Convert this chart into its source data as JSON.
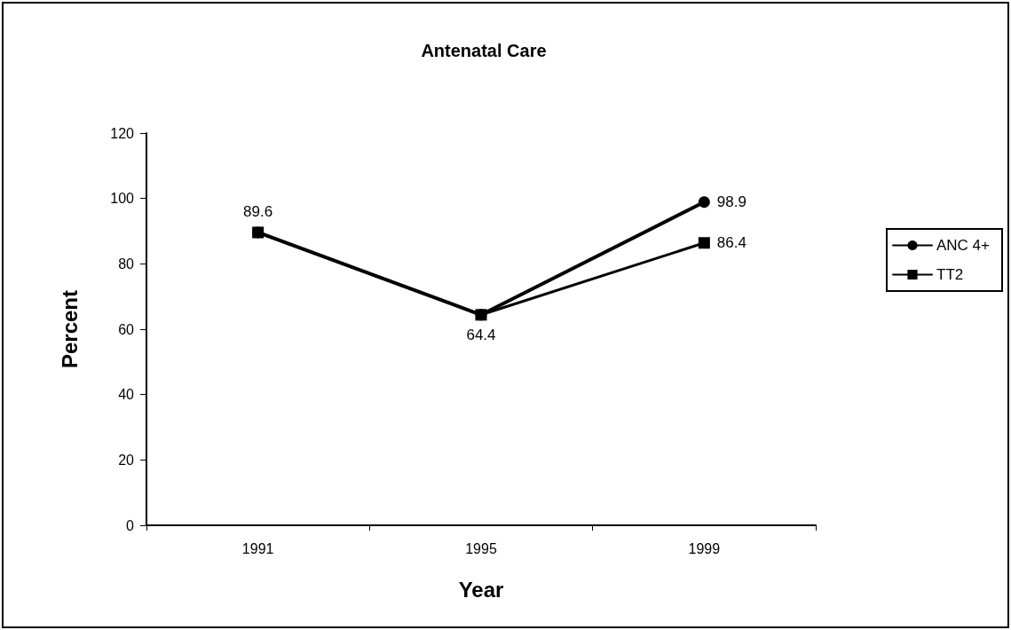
{
  "chart_data": {
    "type": "line",
    "title": "Antenatal Care",
    "xlabel": "Year",
    "ylabel": "Percent",
    "categories": [
      "1991",
      "1995",
      "1999"
    ],
    "series": [
      {
        "name": "ANC 4+",
        "color": "#000000",
        "marker": "circle",
        "values": [
          89.6,
          64.4,
          98.9
        ],
        "value_labels": [
          null,
          null,
          "98.9"
        ]
      },
      {
        "name": "TT2",
        "color": "#000000",
        "marker": "square",
        "values": [
          89.6,
          64.4,
          86.4
        ],
        "value_labels": [
          "89.6",
          "64.4",
          "86.4"
        ]
      }
    ],
    "ylim": [
      0,
      120
    ],
    "yticks": [
      0,
      20,
      40,
      60,
      80,
      100,
      120
    ],
    "grid": false,
    "legend": "right",
    "line_style": "solid"
  }
}
